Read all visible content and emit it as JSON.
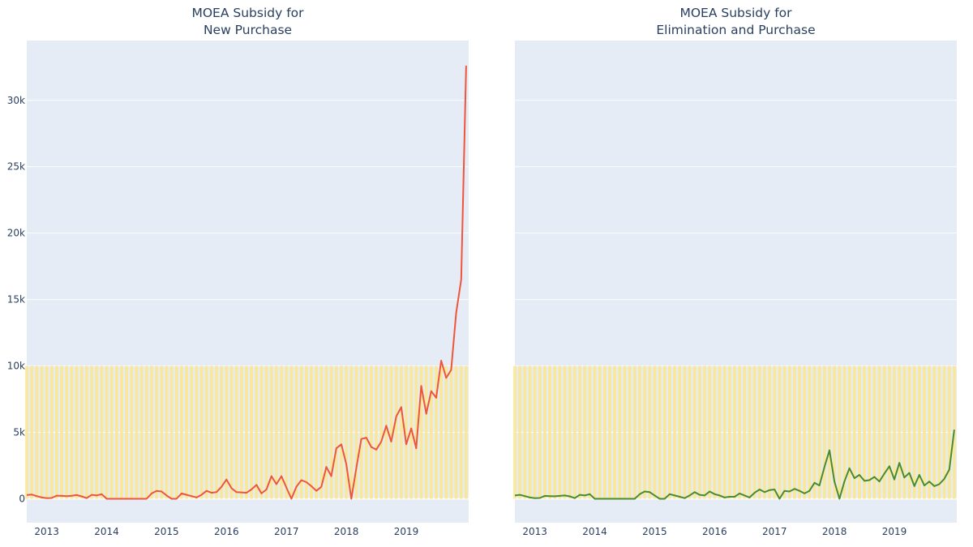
{
  "chart_data": [
    {
      "type": "line",
      "title": "MOEA Subsidy for\nNew Purchase",
      "xlabel": "",
      "ylabel": "",
      "x_start": "2012-09",
      "x_step": "month",
      "x_ticks": [
        "2013",
        "2014",
        "2015",
        "2016",
        "2017",
        "2018",
        "2019"
      ],
      "y_ticks": [
        "0",
        "5k",
        "10k",
        "15k",
        "20k",
        "25k",
        "30k"
      ],
      "ylim": [
        -1800,
        34500
      ],
      "grid": true,
      "highlight_band": {
        "y": [
          0,
          10000
        ],
        "color": "#fde68a"
      },
      "series": [
        {
          "color": "#ef553b",
          "values": [
            280,
            320,
            200,
            100,
            50,
            60,
            240,
            220,
            200,
            230,
            280,
            180,
            50,
            300,
            250,
            350,
            0,
            0,
            0,
            0,
            0,
            0,
            0,
            0,
            0,
            400,
            600,
            550,
            250,
            0,
            0,
            400,
            300,
            200,
            100,
            300,
            600,
            450,
            500,
            900,
            1450,
            800,
            500,
            480,
            450,
            700,
            1050,
            400,
            700,
            1700,
            1100,
            1700,
            850,
            0,
            900,
            1400,
            1250,
            950,
            600,
            900,
            2400,
            1700,
            3800,
            4100,
            2600,
            0,
            2300,
            4500,
            4600,
            3900,
            3700,
            4300,
            5500,
            4300,
            6200,
            6900,
            4100,
            5300,
            3800,
            8500,
            6400,
            8100,
            7600,
            10400,
            9100,
            9700,
            14000,
            16500,
            32600
          ]
        }
      ]
    },
    {
      "type": "line",
      "title": "MOEA Subsidy for\nElimination and Purchase",
      "xlabel": "",
      "ylabel": "",
      "x_start": "2012-09",
      "x_step": "month",
      "x_ticks": [
        "2013",
        "2014",
        "2015",
        "2016",
        "2017",
        "2018",
        "2019"
      ],
      "ylim": [
        -1800,
        34500
      ],
      "grid": true,
      "highlight_band": {
        "y": [
          0,
          10000
        ],
        "color": "#fde68a"
      },
      "series": [
        {
          "color": "#4a8c2a",
          "values": [
            250,
            300,
            200,
            100,
            50,
            60,
            220,
            200,
            190,
            220,
            250,
            180,
            50,
            300,
            250,
            350,
            0,
            0,
            0,
            0,
            0,
            0,
            0,
            0,
            0,
            350,
            550,
            500,
            250,
            0,
            0,
            350,
            250,
            150,
            50,
            250,
            500,
            300,
            250,
            550,
            350,
            250,
            100,
            150,
            150,
            400,
            250,
            100,
            450,
            700,
            500,
            650,
            700,
            0,
            600,
            550,
            750,
            600,
            400,
            600,
            1200,
            1000,
            2400,
            3650,
            1300,
            0,
            1300,
            2300,
            1550,
            1800,
            1350,
            1400,
            1650,
            1300,
            1900,
            2450,
            1450,
            2700,
            1600,
            1950,
            950,
            1800,
            1000,
            1300,
            950,
            1100,
            1500,
            2200,
            5200
          ]
        }
      ]
    }
  ]
}
